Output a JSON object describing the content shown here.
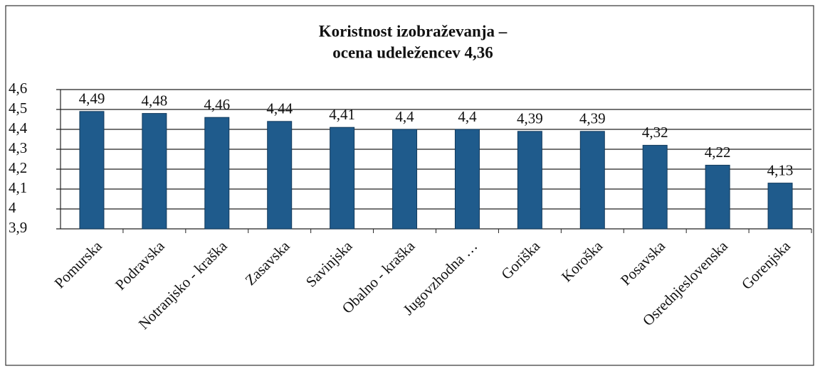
{
  "chart_data": {
    "type": "bar",
    "title": [
      "Koristnost izobraževanja –",
      "ocena udeležencev 4,36"
    ],
    "categories": [
      "Pomurska",
      "Podravska",
      "Notranjsko - kraška",
      "Zasavska",
      "Savinjska",
      "Obalno - kraška",
      "Jugovzhodna …",
      "Goriška",
      "Koroška",
      "Posavska",
      "Osrednjeslovenska",
      "Gorenjska"
    ],
    "values": [
      4.49,
      4.48,
      4.46,
      4.44,
      4.41,
      4.4,
      4.4,
      4.39,
      4.39,
      4.32,
      4.22,
      4.13
    ],
    "value_labels": [
      "4,49",
      "4,48",
      "4,46",
      "4,44",
      "4,41",
      "4,4",
      "4,4",
      "4,39",
      "4,39",
      "4,32",
      "4,22",
      "4,13"
    ],
    "color": "#1f5b8c",
    "ylim": [
      3.9,
      4.6
    ],
    "yticks": [
      {
        "value": 3.9,
        "label": "3,9"
      },
      {
        "value": 4,
        "label": "4"
      },
      {
        "value": 4.1,
        "label": "4,1"
      },
      {
        "value": 4.2,
        "label": "4,2"
      },
      {
        "value": 4.3,
        "label": "4,3"
      },
      {
        "value": 4.4,
        "label": "4,4"
      },
      {
        "value": 4.5,
        "label": "4,5"
      },
      {
        "value": 4.6,
        "label": "4,6"
      }
    ],
    "grid": true
  }
}
